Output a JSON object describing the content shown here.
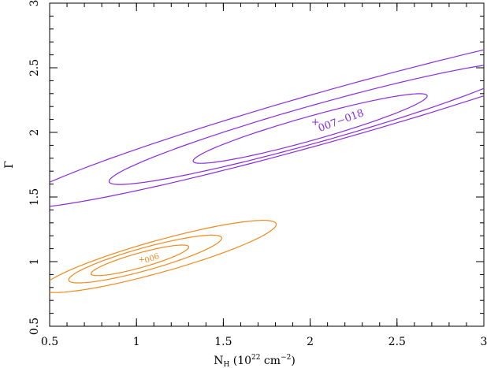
{
  "chart_data": {
    "type": "contour",
    "xlabel": {
      "main": "N",
      "sub": "H",
      "rest": " (10",
      "sup": "22",
      "tail": " cm",
      "sup2": "−2",
      "end": ")"
    },
    "ylabel": "Γ",
    "xlim": [
      0.5,
      3
    ],
    "ylim": [
      0.5,
      3
    ],
    "xticks": [
      "0.5",
      "1",
      "1.5",
      "2",
      "2.5",
      "3"
    ],
    "yticks": [
      "0.5",
      "1",
      "1.5",
      "2",
      "2.5",
      "3"
    ],
    "xtick_values": [
      0.5,
      1,
      1.5,
      2,
      2.5,
      3
    ],
    "ytick_values": [
      0.5,
      1,
      1.5,
      2,
      2.5,
      3
    ],
    "grid": false,
    "series": [
      {
        "name": "007−018",
        "color": "#8a2be2",
        "best_fit": [
          2.03,
          2.08
        ],
        "contours": [
          {
            "center": [
              2.0,
              2.03
            ],
            "a": 0.72,
            "b": 0.09,
            "slope": 0.38
          },
          {
            "center": [
              2.04,
              2.07
            ],
            "a": 1.28,
            "b": 0.14,
            "slope": 0.38
          },
          {
            "center": [
              2.12,
              2.13
            ],
            "a": 1.95,
            "b": 0.19,
            "slope": 0.38
          }
        ]
      },
      {
        "name": "006",
        "color": "#f08a1e",
        "best_fit": [
          1.03,
          1.02
        ],
        "contours": [
          {
            "center": [
              1.02,
              1.01
            ],
            "a": 0.3,
            "b": 0.055,
            "slope": 0.38
          },
          {
            "center": [
              1.05,
              1.02
            ],
            "a": 0.47,
            "b": 0.085,
            "slope": 0.38
          },
          {
            "center": [
              1.13,
              1.04
            ],
            "a": 0.72,
            "b": 0.12,
            "slope": 0.38
          }
        ]
      }
    ]
  }
}
